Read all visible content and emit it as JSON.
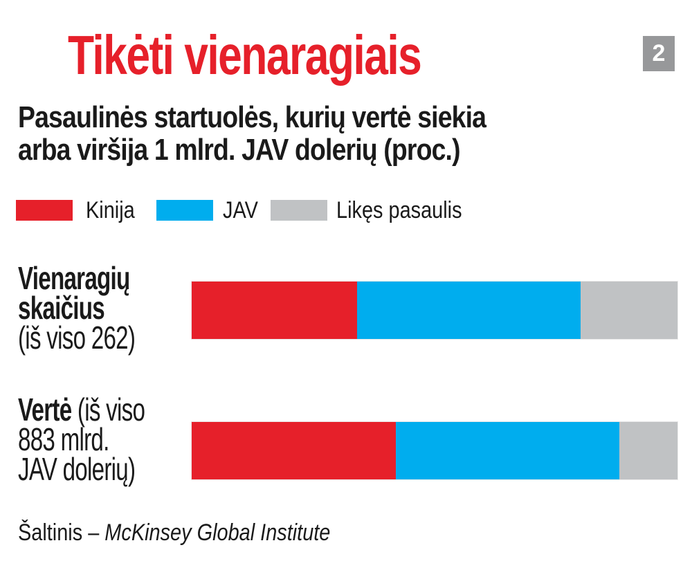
{
  "title": "Tikėti vienaragiais",
  "badge": {
    "label": "2",
    "bg_color": "#97989a",
    "text_color": "#ffffff"
  },
  "subtitle": {
    "line1": "Pasaulinės startuolės, kurių vertė siekia",
    "line2": "arba viršija 1 mlrd. JAV dolerių (proc.)"
  },
  "colors": {
    "title_red": "#e6202a",
    "kinija_red": "#e6202a",
    "jav_blue": "#00adee",
    "likes_gray": "#c0c2c4",
    "text_black": "#1a1a1a",
    "background": "#ffffff"
  },
  "legend": {
    "items": [
      {
        "label": "Kinija"
      },
      {
        "label": "JAV"
      },
      {
        "label": "Likęs pasaulis"
      }
    ]
  },
  "rows": [
    {
      "line1_bold": "Vienaragių",
      "line1_rest": "",
      "line2": "skaičius",
      "line3": "(iš viso 262)"
    },
    {
      "line1_bold": "Vertė",
      "line1_rest": " (iš viso",
      "line2": "883 mlrd.",
      "line3": "JAV dolerių)"
    }
  ],
  "source": {
    "prefix": "Šaltinis – ",
    "name_italic": "McKinsey Global Institute"
  },
  "chart_data": {
    "type": "bar",
    "orientation": "horizontal-stacked",
    "title": "Tikėti vienaragiais",
    "subtitle": "Pasaulinės startuolės, kurių vertė siekia arba viršija 1 mlrd. JAV dolerių (proc.)",
    "unit": "proc. (%)",
    "categories": [
      "Vienaragių skaičius (iš viso 262)",
      "Vertė (iš viso 883 mlrd. JAV dolerių)"
    ],
    "series": [
      {
        "name": "Kinija",
        "color": "#e6202a",
        "values": [
          34,
          42
        ]
      },
      {
        "name": "JAV",
        "color": "#00adee",
        "values": [
          46,
          46
        ]
      },
      {
        "name": "Likęs pasaulis",
        "color": "#c0c2c4",
        "values": [
          20,
          12
        ]
      }
    ],
    "xlim": [
      0,
      100
    ],
    "grid": false,
    "legend_position": "top",
    "source": "Šaltinis – McKinsey Global Institute"
  }
}
